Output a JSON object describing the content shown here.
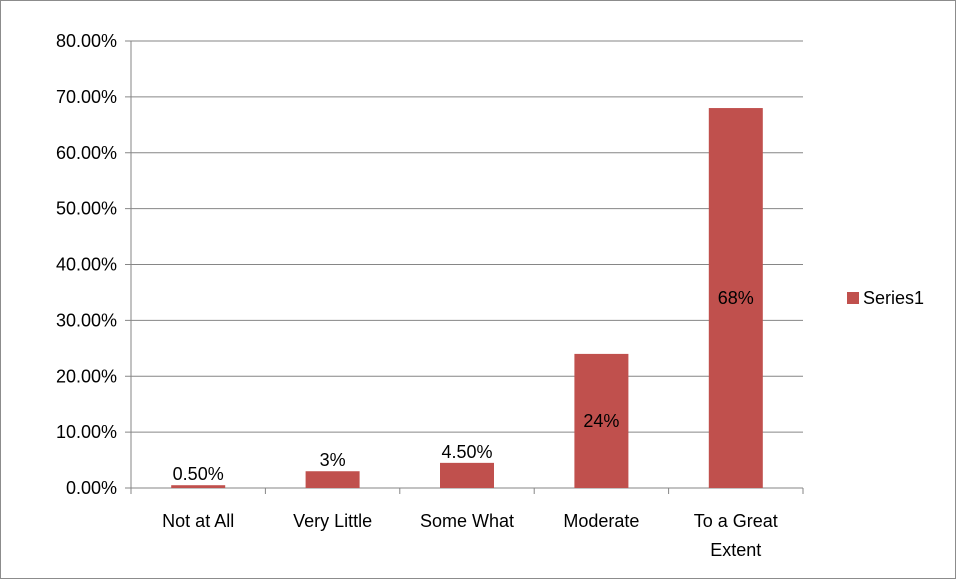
{
  "chart_data": {
    "type": "bar",
    "title": "",
    "xlabel": "",
    "ylabel": "",
    "categories": [
      "Not at All",
      "Very Little",
      "Some What",
      "Moderate",
      "To a Great Extent"
    ],
    "category_lines": [
      [
        "Not at All"
      ],
      [
        "Very Little"
      ],
      [
        "Some What"
      ],
      [
        "Moderate"
      ],
      [
        "To a Great",
        "Extent"
      ]
    ],
    "series": [
      {
        "name": "Series1",
        "values": [
          0.5,
          3,
          4.5,
          24,
          68
        ],
        "data_labels": [
          "0.50%",
          "3%",
          "4.50%",
          "24%",
          "68%"
        ],
        "color": "#c0504d"
      }
    ],
    "ylim": [
      0,
      80
    ],
    "yticks": [
      0,
      10,
      20,
      30,
      40,
      50,
      60,
      70,
      80
    ],
    "ytick_labels": [
      "0.00%",
      "10.00%",
      "20.00%",
      "30.00%",
      "40.00%",
      "50.00%",
      "60.00%",
      "70.00%",
      "80.00%"
    ],
    "grid": true,
    "legend_position": "right"
  }
}
